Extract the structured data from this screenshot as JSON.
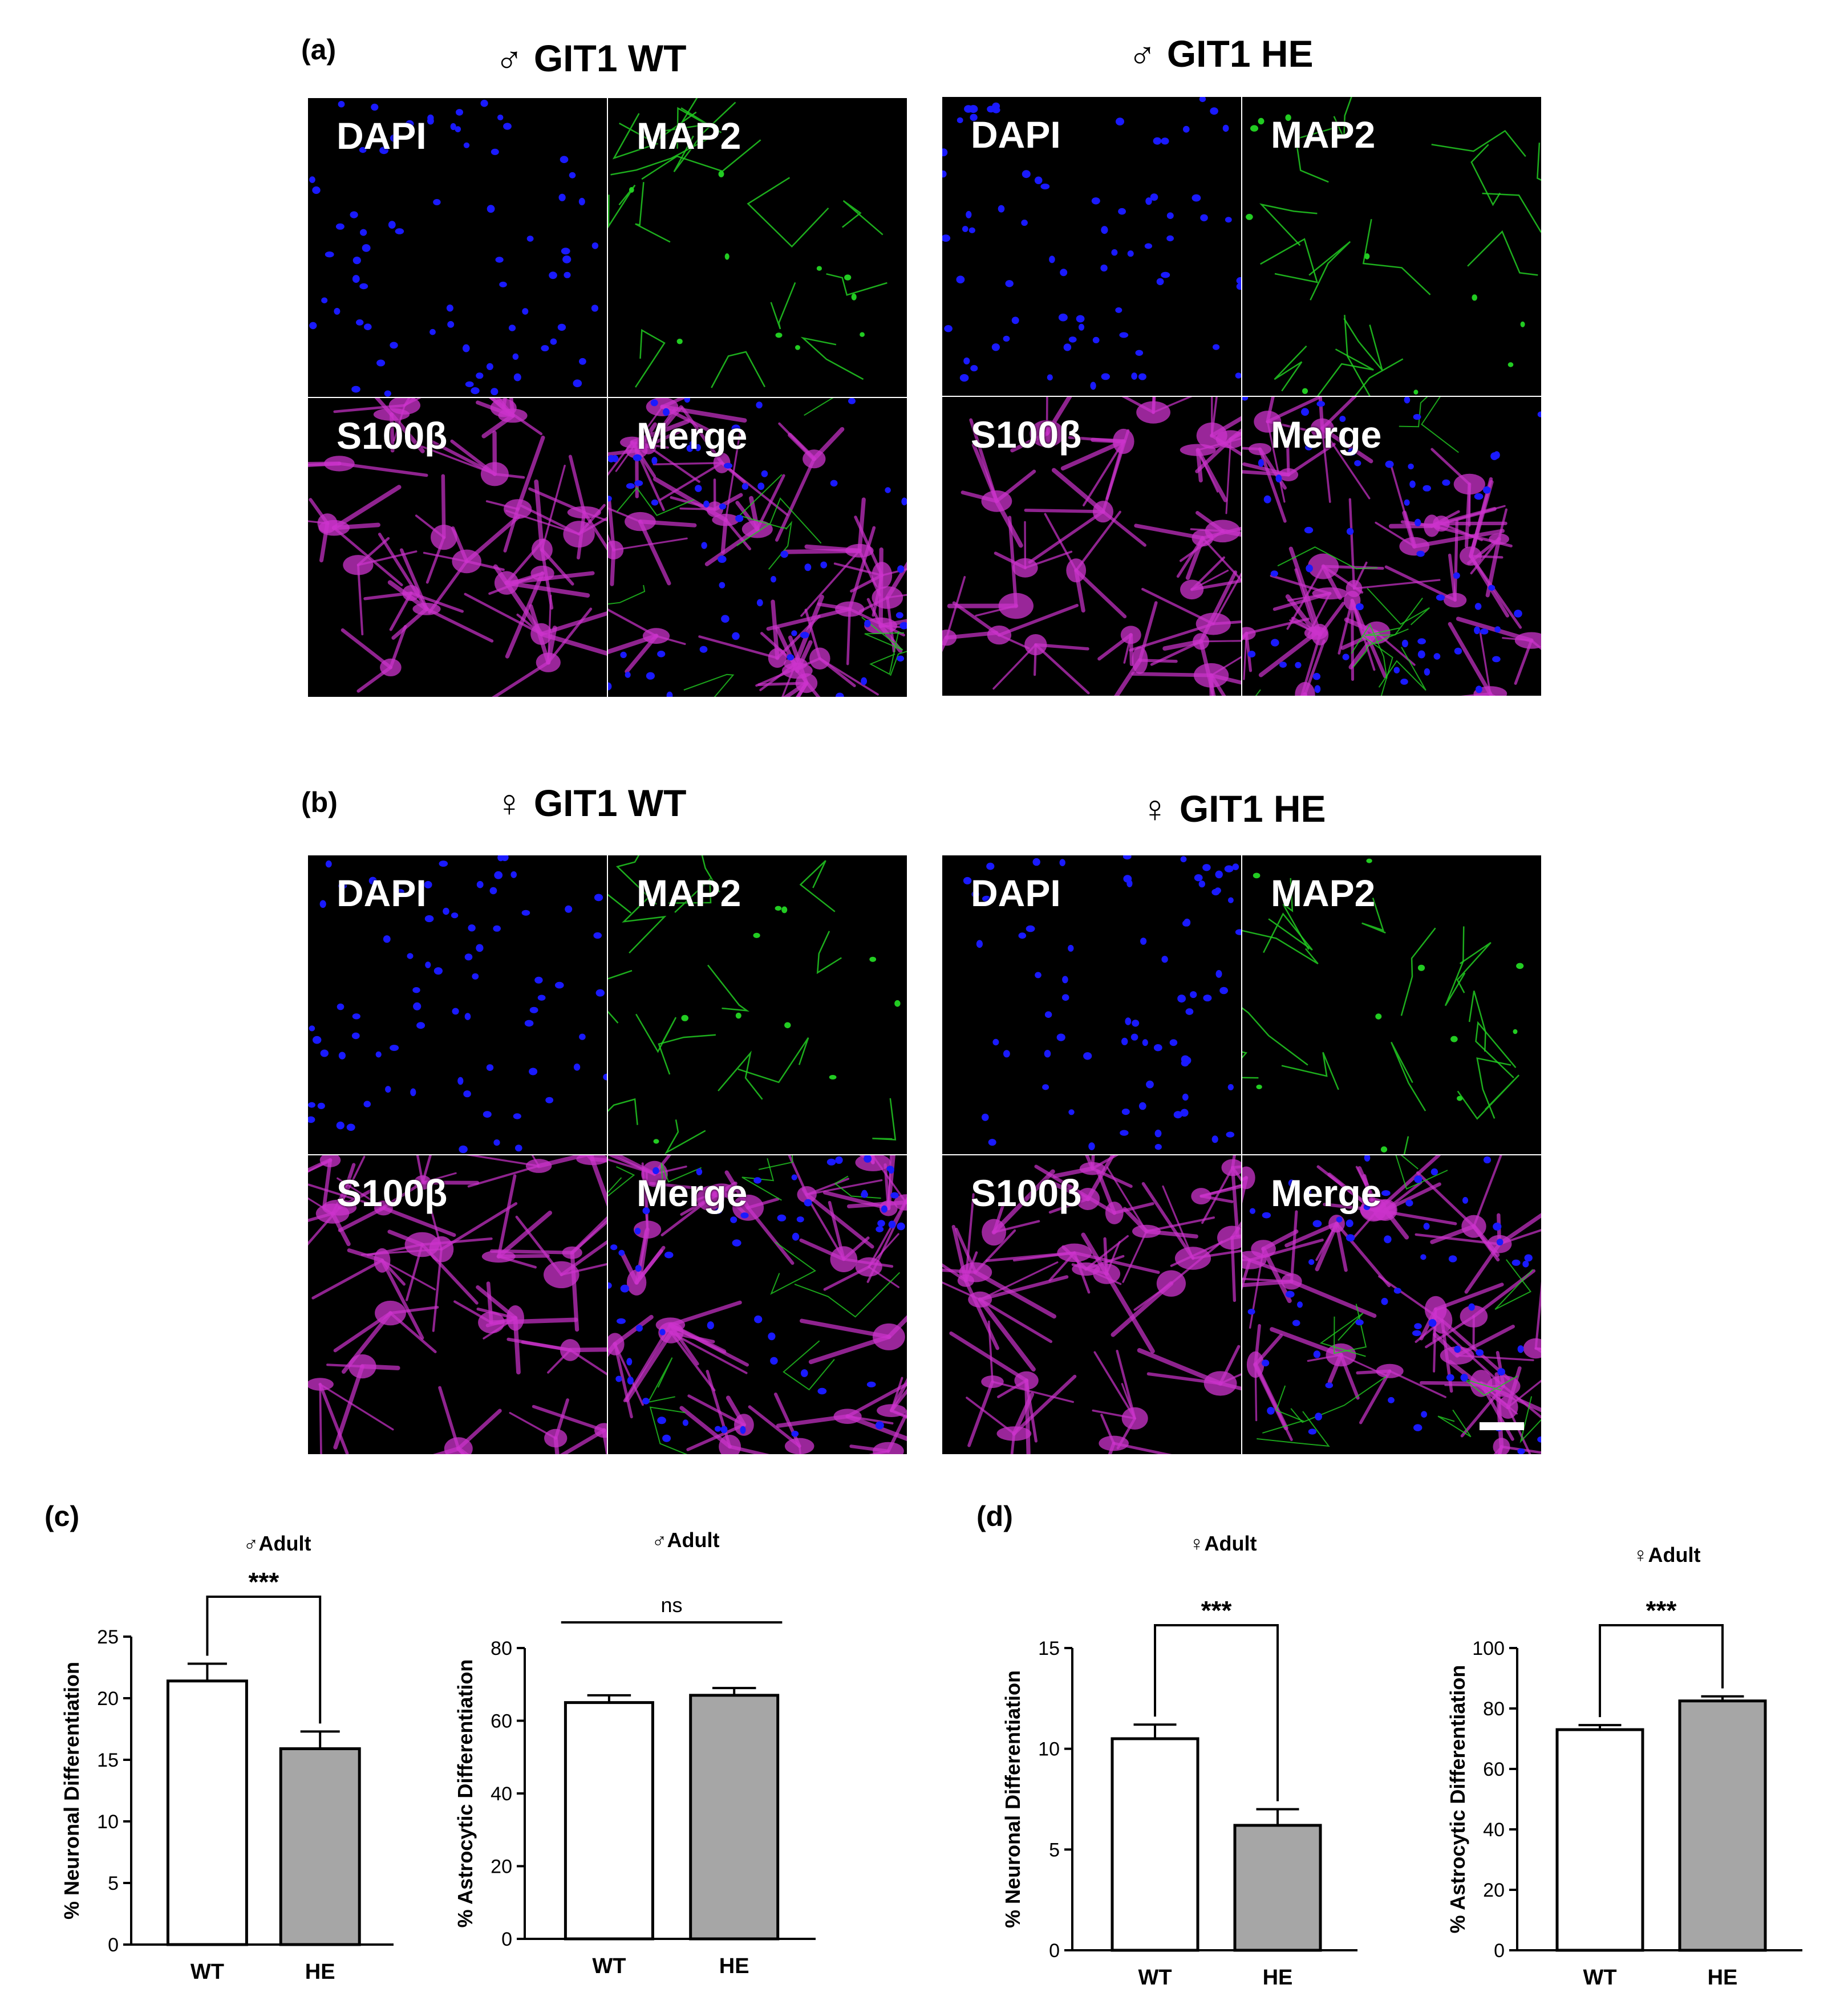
{
  "panels": {
    "a": {
      "letter": "(a)",
      "groups": [
        {
          "title": "♂ GIT1 WT"
        },
        {
          "title": "♂ GIT1 HE"
        }
      ]
    },
    "b": {
      "letter": "(b)",
      "groups": [
        {
          "title": "♀ GIT1 WT"
        },
        {
          "title": "♀ GIT1 HE"
        }
      ]
    },
    "c": {
      "letter": "(c)"
    },
    "d": {
      "letter": "(d)"
    }
  },
  "channels": {
    "dapi": "DAPI",
    "map2": "MAP2",
    "s100b": "S100β",
    "merge": "Merge"
  },
  "colors": {
    "dapi": "#1a1aff",
    "map2": "#22cc22",
    "s100b": "#cc33cc",
    "bar_wt": "#ffffff",
    "bar_he": "#a6a6a6"
  },
  "chart_data": [
    {
      "type": "bar",
      "title": "♂Adult",
      "ylabel": "% Neuronal Differentiation",
      "categories": [
        "WT",
        "HE"
      ],
      "values": [
        21.4,
        15.9
      ],
      "errors": [
        1.4,
        1.4
      ],
      "ylim": [
        0,
        25
      ],
      "yticks": [
        "0",
        "5",
        "10",
        "15",
        "20",
        "25"
      ],
      "significance": "***"
    },
    {
      "type": "bar",
      "title": "♂Adult",
      "ylabel": "% Astrocytic Differentiation",
      "categories": [
        "WT",
        "HE"
      ],
      "values": [
        65,
        67
      ],
      "errors": [
        2,
        2
      ],
      "ylim": [
        0,
        80
      ],
      "yticks": [
        "0",
        "20",
        "40",
        "60",
        "80"
      ],
      "significance": "ns"
    },
    {
      "type": "bar",
      "title": "♀Adult",
      "ylabel": "% Neuronal Differentiation",
      "categories": [
        "WT",
        "HE"
      ],
      "values": [
        10.5,
        6.2
      ],
      "errors": [
        0.7,
        0.8
      ],
      "ylim": [
        0,
        15
      ],
      "yticks": [
        "0",
        "5",
        "10",
        "15"
      ],
      "significance": "***"
    },
    {
      "type": "bar",
      "title": "♀Adult",
      "ylabel": "% Astrocytic Differentiation",
      "categories": [
        "WT",
        "HE"
      ],
      "values": [
        73,
        82.5
      ],
      "errors": [
        1.5,
        1.5
      ],
      "ylim": [
        0,
        100
      ],
      "yticks": [
        "0",
        "20",
        "40",
        "60",
        "80",
        "100"
      ],
      "significance": "***"
    }
  ]
}
